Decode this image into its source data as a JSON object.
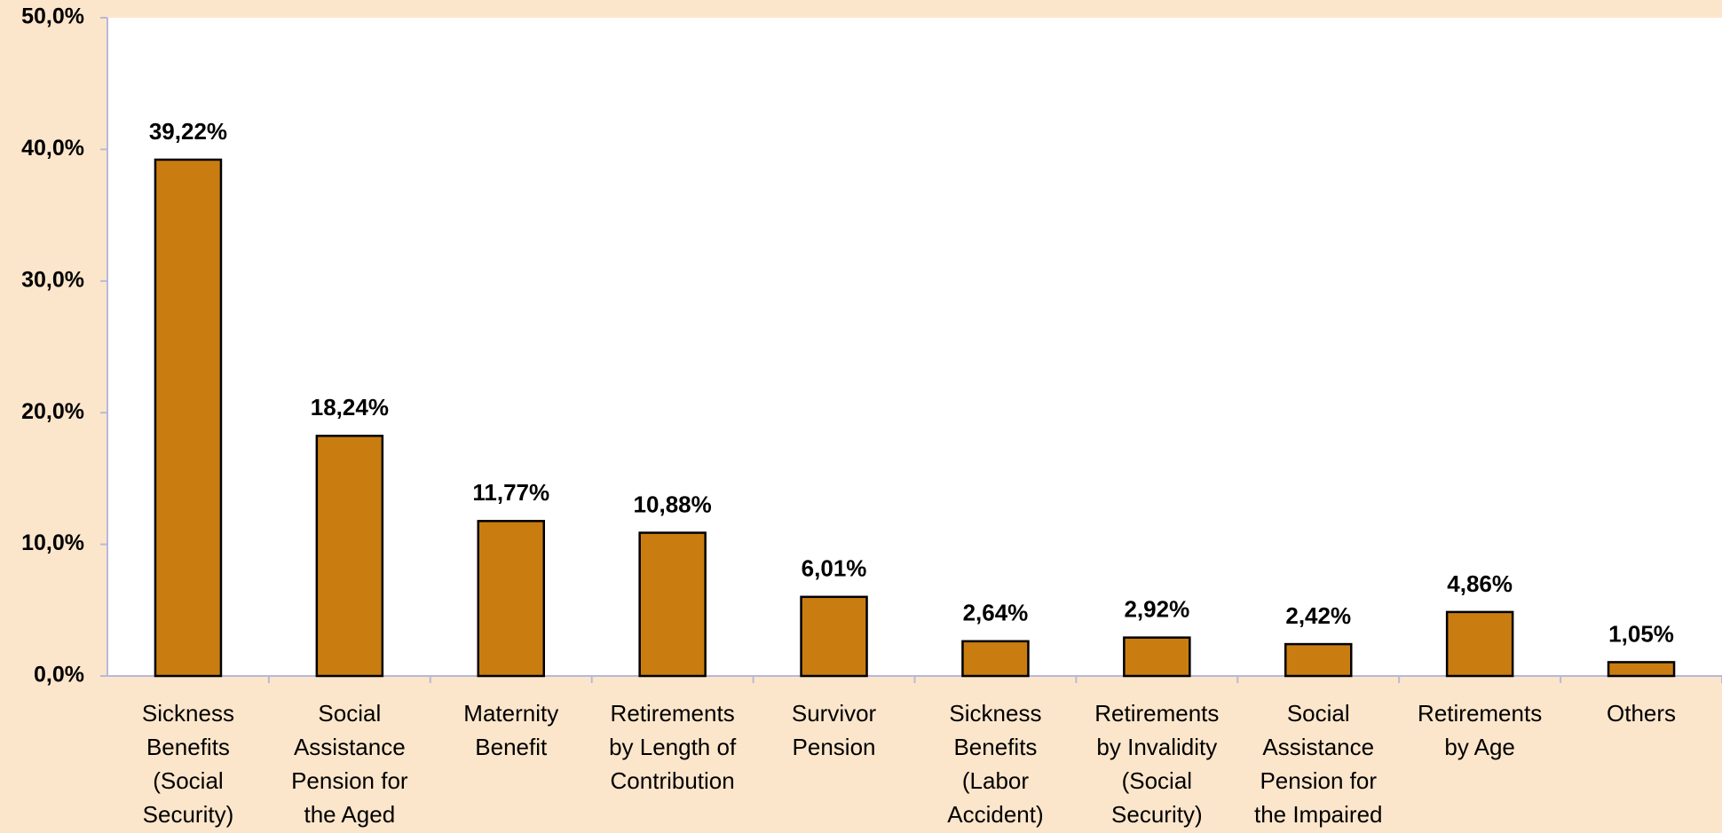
{
  "chart_data": {
    "type": "bar",
    "categories": [
      "Sickness Benefits (Social Security)",
      "Social Assistance Pension for the Aged",
      "Maternity Benefit",
      "Retirements by Length of Contribution",
      "Survivor Pension",
      "Sickness Benefits (Labor Accident)",
      "Retirements by Invalidity (Social Security)",
      "Social Assistance Pension for the Impaired",
      "Retirements by Age",
      "Others"
    ],
    "values": [
      39.22,
      18.24,
      11.77,
      10.88,
      6.01,
      2.64,
      2.92,
      2.42,
      4.86,
      1.05
    ],
    "value_labels": [
      "39,22%",
      "18,24%",
      "11,77%",
      "10,88%",
      "6,01%",
      "2,64%",
      "2,92%",
      "2,42%",
      "4,86%",
      "1,05%"
    ],
    "color": "#c97d10",
    "ylim": [
      0,
      50
    ],
    "yticks": [
      {
        "value": 0,
        "label": "0,0%"
      },
      {
        "value": 10,
        "label": "10,0%"
      },
      {
        "value": 20,
        "label": "20,0%"
      },
      {
        "value": 30,
        "label": "30,0%"
      },
      {
        "value": 40,
        "label": "40,0%"
      },
      {
        "value": 50,
        "label": "50,0%"
      }
    ],
    "grid": false
  }
}
